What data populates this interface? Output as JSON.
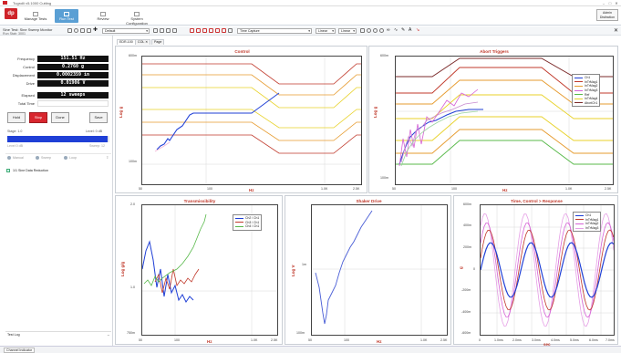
{
  "window": {
    "title": "Tugrolli v5.1000 Cutting"
  },
  "ribbon": {
    "tabs": [
      "Manage Tests",
      "Run Test",
      "Review",
      "System Configuration"
    ],
    "active_tab": "Run Test",
    "admin_label": "Admin Distinction"
  },
  "toolbar": {
    "test_name": "Sine Test: Sine Sweep Monitor",
    "status_text": "Run Stab: 3001",
    "layout_select": "Default",
    "view_select": "Time Capture",
    "scale_x": "Linear",
    "scale_y": "Linear"
  },
  "left_panel": {
    "readouts": [
      {
        "label": "Frequency",
        "value": "151.51 Hz"
      },
      {
        "label": "Control",
        "value": "0.2760 g"
      },
      {
        "label": "Displacement",
        "value": "0.0002359 in"
      },
      {
        "label": "Drive",
        "value": "0.01906 V"
      }
    ],
    "elapsed": [
      {
        "label": "Elapsed",
        "value": "12 sweeps"
      },
      {
        "label": "Total Time",
        "value": ""
      }
    ],
    "buttons": {
      "run": "Hold",
      "stop": "Stop",
      "abort": "Done",
      "save": "Save"
    },
    "progress_label": "Stage: 1.0",
    "progress_right": "Level: 0 dB",
    "progress_fraction": 0.98,
    "progress_sub_left": "Level 0 dB",
    "progress_sub_right": "Sweep: 12",
    "mini_controls": [
      "Manual",
      "Sweep",
      "Loop"
    ],
    "data_reduction": "1/1 Sine Data Reduction",
    "test_log": "Test Log"
  },
  "tabs": [
    "EDR-100",
    "COL",
    "Page"
  ],
  "status_bar": {
    "text": "Channel Indicator"
  },
  "charts": {
    "control": {
      "title": "Control",
      "xlabel": "Hz",
      "ylabel": "Log g",
      "ytop": "600m",
      "ybot": "100m",
      "xticks": [
        "50",
        "100",
        "1.0K",
        "2.5K"
      ]
    },
    "abort": {
      "title": "Abort Triggers",
      "xlabel": "Hz",
      "ylabel": "Log g",
      "ytop": "600m",
      "ybot": "100m",
      "xticks": [
        "50",
        "100",
        "1.0K",
        "2.5K"
      ],
      "legend": [
        "Ch1",
        "InTrMag1",
        "InTrMag2",
        "InTrMag3",
        "Ref",
        "InTrMag4",
        "AbortCh1"
      ]
    },
    "trans": {
      "title": "Transmissibility",
      "xlabel": "Hz",
      "ylabel": "Log g/g",
      "ytop": "2.0",
      "ymid": "1.0",
      "ybot": "750m",
      "xticks": [
        "50",
        "100",
        "1.0K",
        "2.5K"
      ],
      "legend": [
        "Ch2 / Ch1",
        "Ch3 / Ch1",
        "Ch4 / Ch1"
      ]
    },
    "drive": {
      "title": "Shaker Drive",
      "xlabel": "Hz",
      "ylabel": "Log V",
      "ytop": "1m",
      "ymid": "",
      "ybot": "100m",
      "xticks": [
        "50",
        "100",
        "1.0K",
        "2.5K"
      ]
    },
    "time": {
      "title": "Time, Control > Response",
      "xlabel": "sec",
      "ylabel": "g",
      "yticks": [
        "600m",
        "400m",
        "200m",
        "0",
        "-200m",
        "-400m",
        "-600m"
      ],
      "xticks": [
        "0",
        "1.0ms",
        "2.0ms",
        "3.0ms",
        "4.0ms",
        "5.0ms",
        "6.0ms",
        "7.0ms"
      ],
      "legend": [
        "Ch1",
        "InTrMag1",
        "InTrMag2",
        "InTrMag3"
      ]
    }
  },
  "colors": {
    "accent": "#5a9fd4",
    "stop": "#d8262e",
    "title_red": "#c0392b"
  }
}
